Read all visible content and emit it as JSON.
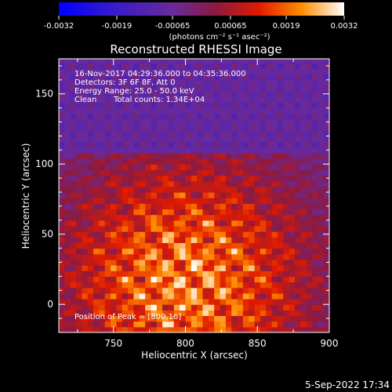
{
  "chart_data": {
    "type": "heatmap",
    "title": "Reconstructed RHESSI Image",
    "xlabel": "Heliocentric X (arcsec)",
    "ylabel": "Heliocentric Y (arcsec)",
    "xlim": [
      712,
      900
    ],
    "ylim": [
      -20,
      175
    ],
    "xticks": [
      750,
      800,
      850,
      900
    ],
    "yticks": [
      0,
      50,
      100,
      150
    ],
    "colorbar": {
      "range": [
        -0.0032,
        0.0032
      ],
      "ticks": [
        -0.0032,
        -0.0019,
        -0.00065,
        0.00065,
        0.0019,
        0.0032
      ],
      "tick_labels": [
        "-0.0032",
        "-0.0019",
        "-0.00065",
        "0.00065",
        "0.0019",
        "0.0032"
      ],
      "unit_label": "(photons cm⁻² s⁻¹ asec⁻²)"
    },
    "annotations": [
      "16-Nov-2017 04:29:36.000 to 04:35:36.000",
      "Detectors: 3F 6F 8F, Att 0",
      "Energy Range: 25.0 - 50.0 keV",
      "Clean",
      "Total counts: 1.34E+04",
      "Position of Peak = [800,16]"
    ],
    "peak": [
      800,
      16
    ],
    "grid": false
  },
  "footer": {
    "date": "5-Sep-2022 17:34"
  }
}
